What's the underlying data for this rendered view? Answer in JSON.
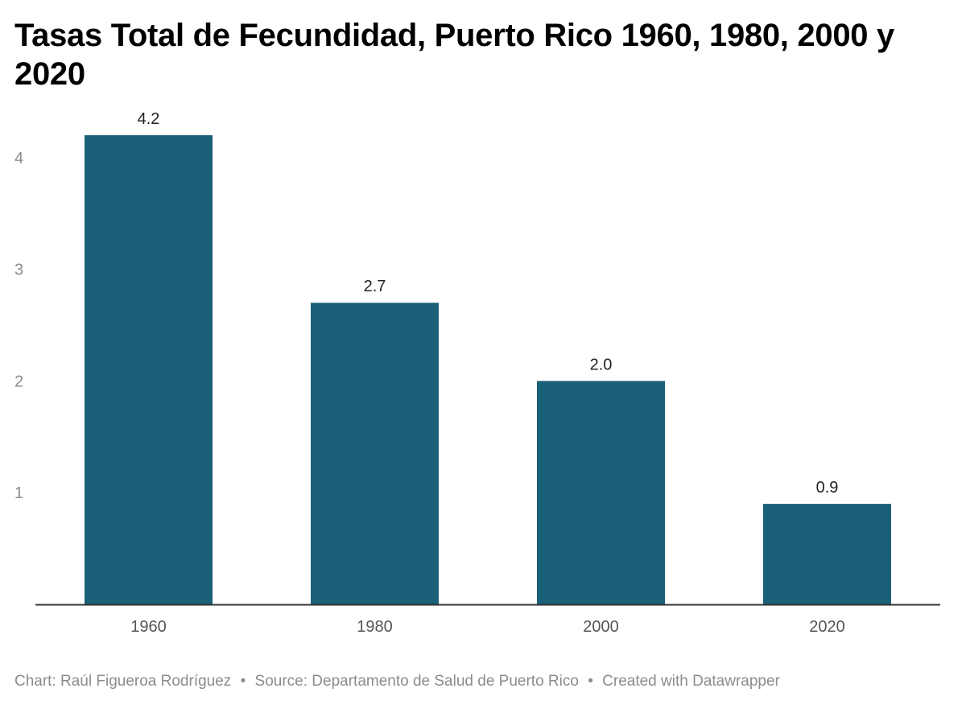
{
  "chart_data": {
    "type": "bar",
    "title": "Tasas Total de Fecundidad, Puerto Rico 1960, 1980, 2000 y 2020",
    "categories": [
      "1960",
      "1980",
      "2000",
      "2020"
    ],
    "values": [
      4.2,
      2.7,
      2.0,
      0.9
    ],
    "value_labels": [
      "4.2",
      "2.7",
      "2.0",
      "0.9"
    ],
    "yticks": [
      1,
      2,
      3,
      4
    ],
    "ytick_labels": [
      "1",
      "2",
      "3",
      "4"
    ],
    "ylim": [
      0,
      4.3
    ],
    "xlabel": "",
    "ylabel": "",
    "grid": false,
    "bar_color": "#1a6078"
  },
  "footer": {
    "chart_credit": "Chart: Raúl Figueroa Rodríguez",
    "source": "Source: Departamento de Salud de Puerto Rico",
    "created_with": "Created with Datawrapper",
    "separator": "•"
  },
  "colors": {
    "bar": "#1a6078",
    "axis": "#333333",
    "tick_text": "#8c8c8c",
    "category_text": "#555555",
    "label_text": "#222222"
  }
}
